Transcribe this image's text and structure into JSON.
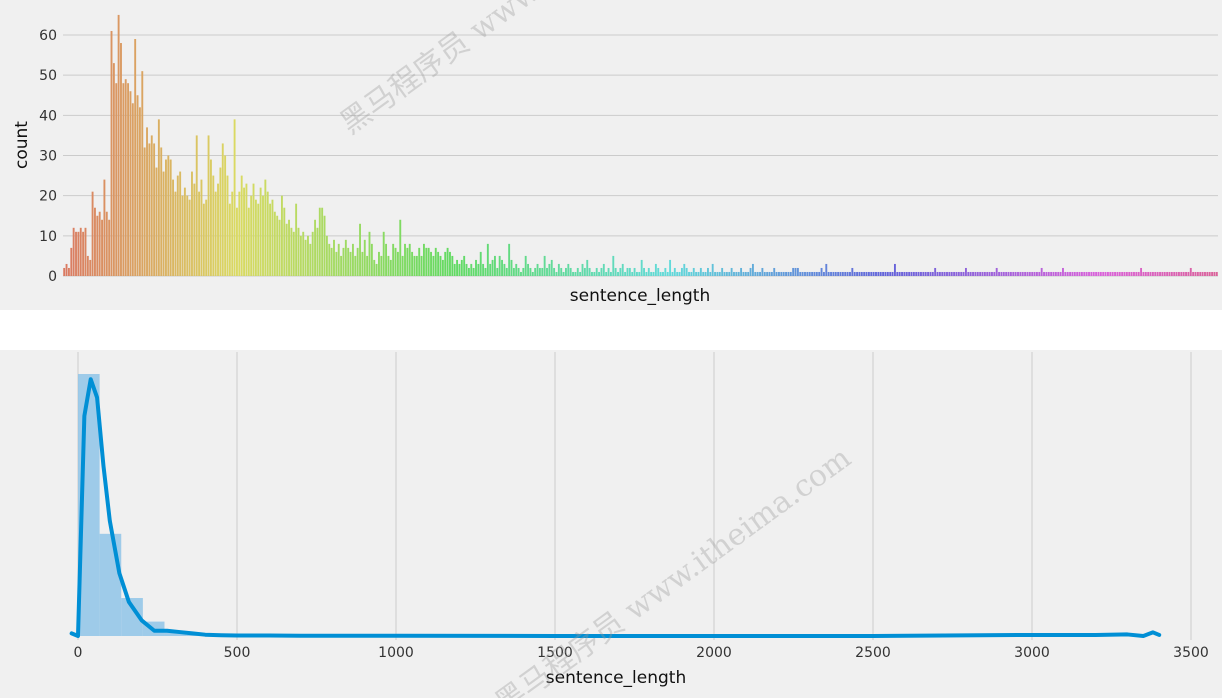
{
  "chart_data": [
    {
      "type": "bar",
      "title": "",
      "xlabel": "sentence_length",
      "ylabel": "count",
      "ylim": [
        0,
        64
      ],
      "yticks": [
        0,
        10,
        20,
        30,
        40,
        50,
        60
      ],
      "x_tick_labels_shown": false,
      "grid": "horizontal",
      "palette": "husl rainbow (red → orange → olive → green → teal → blue → purple → pink)",
      "values": [
        2,
        3,
        2,
        7,
        12,
        11,
        11,
        12,
        11,
        12,
        5,
        4,
        21,
        17,
        15,
        16,
        14,
        24,
        16,
        14,
        61,
        53,
        48,
        65,
        58,
        48,
        49,
        48,
        46,
        43,
        59,
        45,
        42,
        51,
        32,
        37,
        33,
        35,
        33,
        27,
        39,
        32,
        26,
        29,
        30,
        29,
        24,
        21,
        25,
        26,
        20,
        22,
        20,
        19,
        26,
        23,
        35,
        21,
        24,
        18,
        19,
        35,
        29,
        25,
        21,
        23,
        27,
        33,
        30,
        25,
        18,
        21,
        39,
        17,
        21,
        25,
        22,
        23,
        17,
        20,
        23,
        19,
        18,
        22,
        20,
        24,
        21,
        18,
        19,
        16,
        15,
        14,
        20,
        17,
        13,
        14,
        12,
        11,
        18,
        12,
        10,
        11,
        9,
        10,
        8,
        11,
        14,
        12,
        17,
        17,
        15,
        10,
        8,
        7,
        9,
        6,
        8,
        5,
        7,
        9,
        7,
        6,
        8,
        5,
        7,
        13,
        6,
        9,
        5,
        11,
        8,
        4,
        3,
        6,
        5,
        11,
        8,
        5,
        4,
        8,
        7,
        6,
        14,
        5,
        8,
        7,
        8,
        6,
        5,
        5,
        7,
        5,
        8,
        7,
        7,
        6,
        5,
        7,
        6,
        5,
        4,
        6,
        7,
        6,
        5,
        3,
        4,
        3,
        4,
        5,
        3,
        2,
        3,
        2,
        4,
        3,
        6,
        3,
        2,
        8,
        3,
        4,
        5,
        2,
        5,
        4,
        3,
        2,
        8,
        4,
        2,
        3,
        2,
        1,
        2,
        5,
        3,
        2,
        1,
        2,
        3,
        2,
        2,
        5,
        2,
        3,
        4,
        2,
        1,
        3,
        2,
        1,
        2,
        3,
        2,
        1,
        1,
        2,
        1,
        3,
        2,
        4,
        2,
        1,
        1,
        2,
        1,
        2,
        3,
        1,
        2,
        1,
        5,
        2,
        1,
        2,
        3,
        1,
        2,
        2,
        1,
        2,
        1,
        1,
        4,
        2,
        1,
        2,
        1,
        1,
        3,
        2,
        1,
        1,
        2,
        1,
        4,
        1,
        2,
        1,
        1,
        2,
        3,
        2,
        1,
        1,
        2,
        1,
        1,
        2,
        1,
        1,
        2,
        1,
        3,
        1,
        1,
        1,
        2,
        1,
        1,
        1,
        2,
        1,
        1,
        1,
        2,
        1,
        1,
        1,
        2,
        3,
        1,
        1,
        1,
        2,
        1,
        1,
        1,
        1,
        2,
        1,
        1,
        1,
        1,
        1,
        1,
        1,
        2,
        2,
        2,
        1,
        1,
        1,
        1,
        1,
        1,
        1,
        1,
        1,
        2,
        1,
        3,
        1,
        1,
        1,
        1,
        1,
        1,
        1,
        1,
        1,
        1,
        2,
        1,
        1,
        1,
        1,
        1,
        1,
        1,
        1,
        1,
        1,
        1,
        1,
        1,
        1,
        1,
        1,
        1,
        3,
        1,
        1,
        1,
        1,
        1,
        1,
        1,
        1,
        1,
        1,
        1,
        1,
        1,
        1,
        1,
        1,
        2,
        1,
        1,
        1,
        1,
        1,
        1,
        1,
        1,
        1,
        1,
        1,
        1,
        2,
        1,
        1,
        1,
        1,
        1,
        1,
        1,
        1,
        1,
        1,
        1,
        1,
        2,
        1,
        1,
        1,
        1,
        1,
        1,
        1,
        1,
        1,
        1,
        1,
        1,
        1,
        1,
        1,
        1,
        1,
        1,
        2,
        1,
        1,
        1,
        1,
        1,
        1,
        1,
        1,
        2,
        1,
        1,
        1,
        1,
        1,
        1,
        1,
        1,
        1,
        1,
        1,
        1,
        1,
        1,
        1,
        1,
        1,
        1,
        1,
        1,
        1,
        1,
        1,
        1,
        1,
        1,
        1,
        1,
        1,
        1,
        1,
        1,
        2,
        1,
        1,
        1,
        1,
        1,
        1,
        1,
        1,
        1,
        1,
        1,
        1,
        1,
        1,
        1,
        1,
        1,
        1,
        1,
        1,
        2,
        1,
        1,
        1,
        1,
        1,
        1,
        1,
        1,
        1,
        1,
        1
      ]
    },
    {
      "type": "area",
      "title": "",
      "xlabel": "sentence_length",
      "ylabel": "",
      "xlim": [
        -30,
        3560
      ],
      "xticks": [
        0,
        500,
        1000,
        1500,
        2000,
        2500,
        3000,
        3500
      ],
      "y_tick_labels_shown": false,
      "grid": "vertical",
      "histogram_color": "#8fc4e8",
      "kde_color": "#008fd5",
      "hist_bin_width": 68,
      "hist_bins_start": [
        0,
        68,
        136,
        204,
        272,
        340,
        408,
        476,
        544
      ],
      "hist_density": [
        1.0,
        0.39,
        0.145,
        0.055,
        0.015,
        0.006,
        0.003,
        0.002,
        0.001
      ],
      "kde_x": [
        -20,
        0,
        20,
        40,
        60,
        80,
        100,
        130,
        160,
        200,
        240,
        280,
        320,
        360,
        400,
        450,
        500,
        600,
        700,
        800,
        1000,
        1500,
        2000,
        2500,
        3000,
        3100,
        3200,
        3300,
        3350,
        3380,
        3400
      ],
      "kde_y": [
        0.01,
        0.0,
        0.84,
        0.98,
        0.91,
        0.65,
        0.44,
        0.24,
        0.13,
        0.06,
        0.02,
        0.02,
        0.015,
        0.01,
        0.005,
        0.003,
        0.002,
        0.002,
        0.001,
        0.001,
        0.001,
        0.0,
        0.0,
        0.0,
        0.004,
        0.004,
        0.004,
        0.006,
        0.0,
        0.014,
        0.004
      ]
    }
  ],
  "watermarks": [
    "黑马程序员 www",
    "黑马程序员 www.itheima.com"
  ]
}
